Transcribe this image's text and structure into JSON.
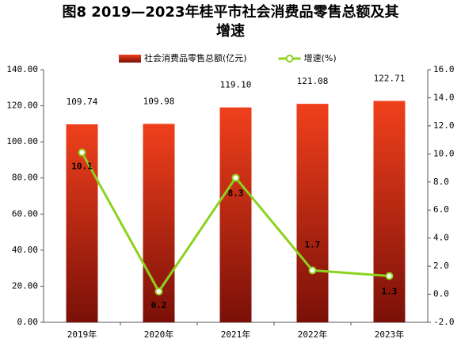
{
  "chart_data": {
    "type": "bar-line",
    "title": "图8  2019—2023年桂平市社会消费品零售总额及其增速",
    "categories": [
      "2019年",
      "2020年",
      "2021年",
      "2022年",
      "2023年"
    ],
    "series": [
      {
        "name": "社会消费品零售总额(亿元)",
        "type": "bar",
        "color": "#f0401c",
        "values": [
          109.74,
          109.98,
          119.1,
          121.08,
          122.71
        ],
        "value_labels": [
          "109.74",
          "109.98",
          "119.10",
          "121.08",
          "122.71"
        ]
      },
      {
        "name": "增速(%)",
        "type": "line",
        "axis": "y2",
        "color": "#8cd21e",
        "values": [
          10.1,
          0.2,
          8.3,
          1.7,
          1.3
        ]
      }
    ],
    "ylim": [
      0,
      140
    ],
    "yticks": [
      {
        "value": 0,
        "label": "0.00"
      },
      {
        "value": 20,
        "label": "20.00"
      },
      {
        "value": 40,
        "label": "40.00"
      },
      {
        "value": 60,
        "label": "60.00"
      },
      {
        "value": 80,
        "label": "80.00"
      },
      {
        "value": 100,
        "label": "100.00"
      },
      {
        "value": 120,
        "label": "120.00"
      },
      {
        "value": 140,
        "label": "140.00"
      }
    ],
    "y2lim": [
      -2,
      16
    ],
    "y2ticks": [
      {
        "value": -2,
        "label": "-2.0"
      },
      {
        "value": 0,
        "label": "0.0"
      },
      {
        "value": 2,
        "label": "2.0"
      },
      {
        "value": 4,
        "label": "4.0"
      },
      {
        "value": 6,
        "label": "6.0"
      },
      {
        "value": 8,
        "label": "8.0"
      },
      {
        "value": 10,
        "label": "10.0"
      },
      {
        "value": 12,
        "label": "12.0"
      },
      {
        "value": 14,
        "label": "14.0"
      },
      {
        "value": 16,
        "label": "16.0"
      }
    ],
    "legend": "top"
  }
}
